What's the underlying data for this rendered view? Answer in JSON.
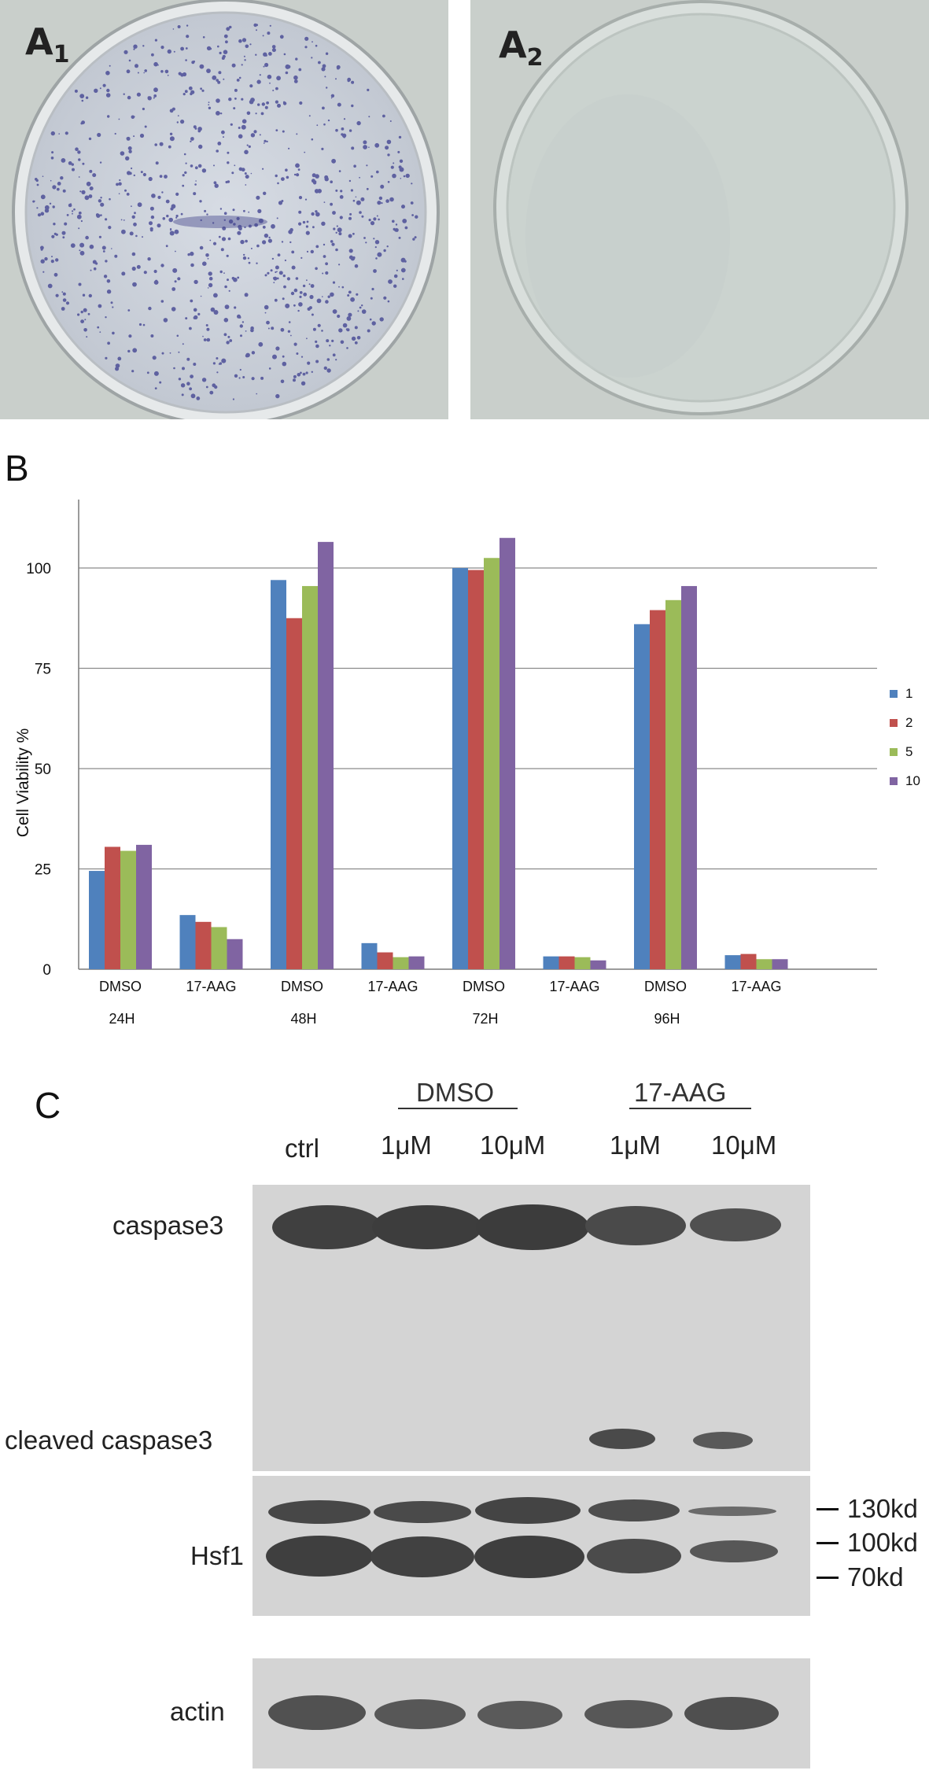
{
  "panel_a": {
    "plate1_label_main": "A",
    "plate1_label_sub": "1",
    "plate2_label_main": "A",
    "plate2_label_sub": "2"
  },
  "panel_b_label": "B",
  "panel_c_label": "C",
  "chart_data": {
    "type": "bar",
    "categories": [
      "DMSO",
      "17-AAG",
      "DMSO",
      "17-AAG",
      "DMSO",
      "17-AAG",
      "DMSO",
      "17-AAG"
    ],
    "groups": [
      "24H",
      "48H",
      "72H",
      "96H"
    ],
    "series": [
      {
        "name": "1",
        "values": [
          24.5,
          13.5,
          97,
          6.5,
          100,
          3.2,
          86,
          3.5
        ]
      },
      {
        "name": "2",
        "values": [
          30.5,
          11.8,
          87.5,
          4.2,
          99.5,
          3.2,
          89.5,
          3.8
        ]
      },
      {
        "name": "5",
        "values": [
          29.5,
          10.5,
          95.5,
          3.0,
          102.5,
          3.0,
          92,
          2.5
        ]
      },
      {
        "name": "10",
        "values": [
          31,
          7.5,
          106.5,
          3.2,
          107.5,
          2.2,
          95.5,
          2.5
        ]
      }
    ],
    "colors": [
      "#4f81bd",
      "#c0504d",
      "#9bbb59",
      "#8064a2"
    ],
    "ylabel": "Cell  Viability %",
    "yticks": [
      "0",
      "25",
      "50",
      "75",
      "100"
    ],
    "ylim": [
      0,
      120
    ],
    "grid": true,
    "legend": "right"
  },
  "panel_c": {
    "group_dmso": "DMSO",
    "group_17aag": "17-AAG",
    "lanes": [
      "ctrl",
      "1μM",
      "10μM",
      "1μM",
      "10μM"
    ],
    "row_caspase3": "caspase3",
    "row_cleaved": "cleaved caspase3",
    "row_hsf1": "Hsf1",
    "row_actin": "actin",
    "mw_130": "130kd",
    "mw_100": "100kd",
    "mw_70": "70kd"
  }
}
